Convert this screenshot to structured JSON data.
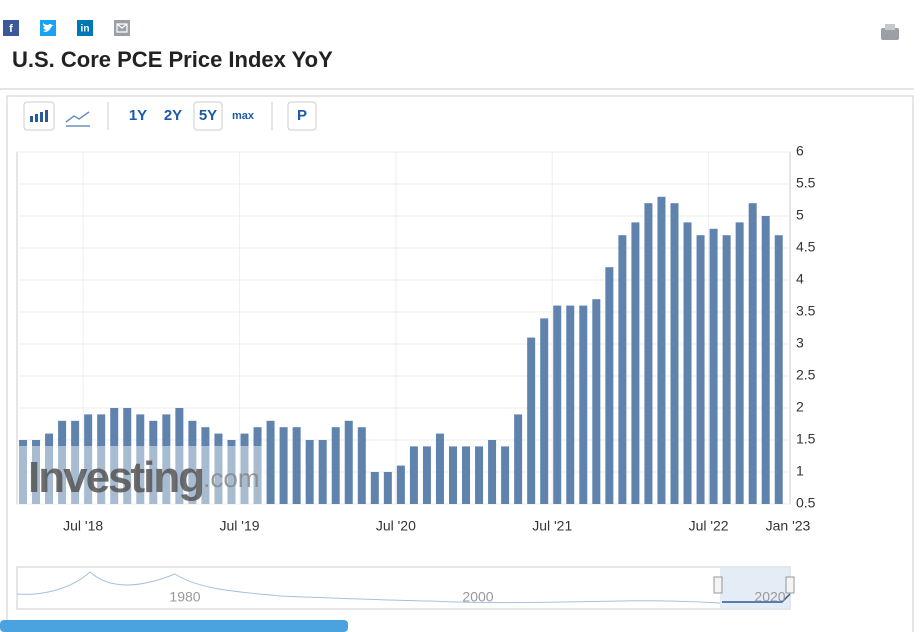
{
  "header": {
    "title": "U.S. Core PCE Price Index YoY",
    "social": [
      "f",
      "in"
    ]
  },
  "toolbar": {
    "ranges": [
      "1Y",
      "2Y",
      "5Y",
      "max"
    ],
    "extra": "P"
  },
  "watermark": {
    "brand": "Investing",
    "suffix": ".com"
  },
  "navigator": {
    "labels": [
      "1980",
      "2000",
      "2020"
    ]
  },
  "chart_data": {
    "type": "bar",
    "color": "#5f83ac",
    "grid": true,
    "categories": [
      null,
      null,
      null,
      null,
      null,
      "Jul '18",
      null,
      null,
      null,
      null,
      null,
      null,
      null,
      null,
      null,
      null,
      null,
      "Jul '19",
      null,
      null,
      null,
      null,
      null,
      null,
      null,
      null,
      null,
      null,
      null,
      "Jul '20",
      null,
      null,
      null,
      null,
      null,
      null,
      null,
      null,
      null,
      null,
      null,
      "Jul '21",
      null,
      null,
      null,
      null,
      null,
      null,
      null,
      null,
      null,
      null,
      null,
      "Jul '22",
      null,
      null,
      null,
      null,
      null
    ],
    "end_label": "Jan '23",
    "values": [
      1.5,
      1.5,
      1.6,
      1.8,
      1.8,
      1.9,
      1.9,
      2.0,
      2.0,
      1.9,
      1.8,
      1.9,
      2.0,
      1.8,
      1.7,
      1.6,
      1.5,
      1.6,
      1.7,
      1.8,
      1.7,
      1.7,
      1.5,
      1.5,
      1.7,
      1.8,
      1.7,
      1.0,
      1.0,
      1.1,
      1.4,
      1.4,
      1.6,
      1.4,
      1.4,
      1.4,
      1.5,
      1.4,
      1.9,
      3.1,
      3.4,
      3.6,
      3.6,
      3.6,
      3.7,
      4.2,
      4.7,
      4.9,
      5.2,
      5.3,
      5.2,
      4.9,
      4.7,
      4.8,
      4.7,
      4.9,
      5.2,
      5.0,
      4.7
    ],
    "ylim": [
      0.5,
      6
    ],
    "yticks": [
      0.5,
      1,
      1.5,
      2,
      2.5,
      3,
      3.5,
      4,
      4.5,
      5,
      5.5,
      6
    ]
  }
}
